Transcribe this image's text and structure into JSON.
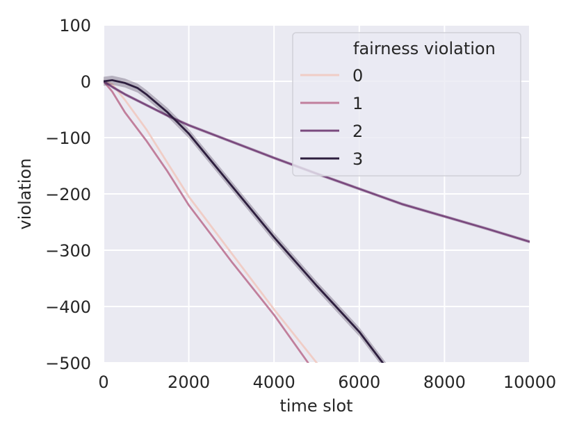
{
  "chart_data": {
    "type": "line",
    "title": "",
    "xlabel": "time slot",
    "ylabel": "violation",
    "xlim": [
      0,
      10000
    ],
    "ylim": [
      -500,
      100
    ],
    "xticks": [
      0,
      2000,
      4000,
      6000,
      8000,
      10000
    ],
    "yticks": [
      100,
      0,
      -100,
      -200,
      -300,
      -400,
      -500
    ],
    "xtick_labels": [
      "0",
      "2000",
      "4000",
      "6000",
      "8000",
      "10000"
    ],
    "ytick_labels": [
      "100",
      "0",
      "−100",
      "−200",
      "−300",
      "−400",
      "−500"
    ],
    "grid": true,
    "background": "#eaeaf2",
    "legend": {
      "title": "fairness violation",
      "placement": "top-right"
    },
    "series": [
      {
        "name": "0",
        "color": "#f0cdc6",
        "band": 1.5,
        "points": [
          [
            0,
            0
          ],
          [
            200,
            -5
          ],
          [
            500,
            -33
          ],
          [
            1000,
            -85
          ],
          [
            1500,
            -145
          ],
          [
            2000,
            -205
          ],
          [
            3000,
            -305
          ],
          [
            4000,
            -405
          ],
          [
            5000,
            -500
          ],
          [
            5300,
            -525
          ]
        ]
      },
      {
        "name": "1",
        "color": "#c17f9c",
        "band": 1.5,
        "points": [
          [
            0,
            0
          ],
          [
            200,
            -18
          ],
          [
            500,
            -55
          ],
          [
            1000,
            -105
          ],
          [
            1500,
            -160
          ],
          [
            2000,
            -220
          ],
          [
            3000,
            -320
          ],
          [
            4000,
            -415
          ],
          [
            4800,
            -500
          ],
          [
            5000,
            -520
          ]
        ]
      },
      {
        "name": "2",
        "color": "#7a4a7e",
        "band": 3,
        "points": [
          [
            0,
            0
          ],
          [
            250,
            -12
          ],
          [
            500,
            -23
          ],
          [
            1000,
            -42
          ],
          [
            1500,
            -61
          ],
          [
            2000,
            -78
          ],
          [
            3000,
            -107
          ],
          [
            4000,
            -136
          ],
          [
            5000,
            -164
          ],
          [
            6000,
            -191
          ],
          [
            7000,
            -218
          ],
          [
            8000,
            -240
          ],
          [
            9000,
            -262
          ],
          [
            10000,
            -285
          ]
        ]
      },
      {
        "name": "3",
        "color": "#2d1e3e",
        "band": 8,
        "points": [
          [
            0,
            0
          ],
          [
            200,
            2
          ],
          [
            500,
            -3
          ],
          [
            800,
            -12
          ],
          [
            1000,
            -23
          ],
          [
            1500,
            -55
          ],
          [
            2000,
            -93
          ],
          [
            3000,
            -185
          ],
          [
            4000,
            -277
          ],
          [
            5000,
            -363
          ],
          [
            6000,
            -445
          ],
          [
            6500,
            -495
          ],
          [
            6700,
            -515
          ]
        ]
      }
    ]
  }
}
